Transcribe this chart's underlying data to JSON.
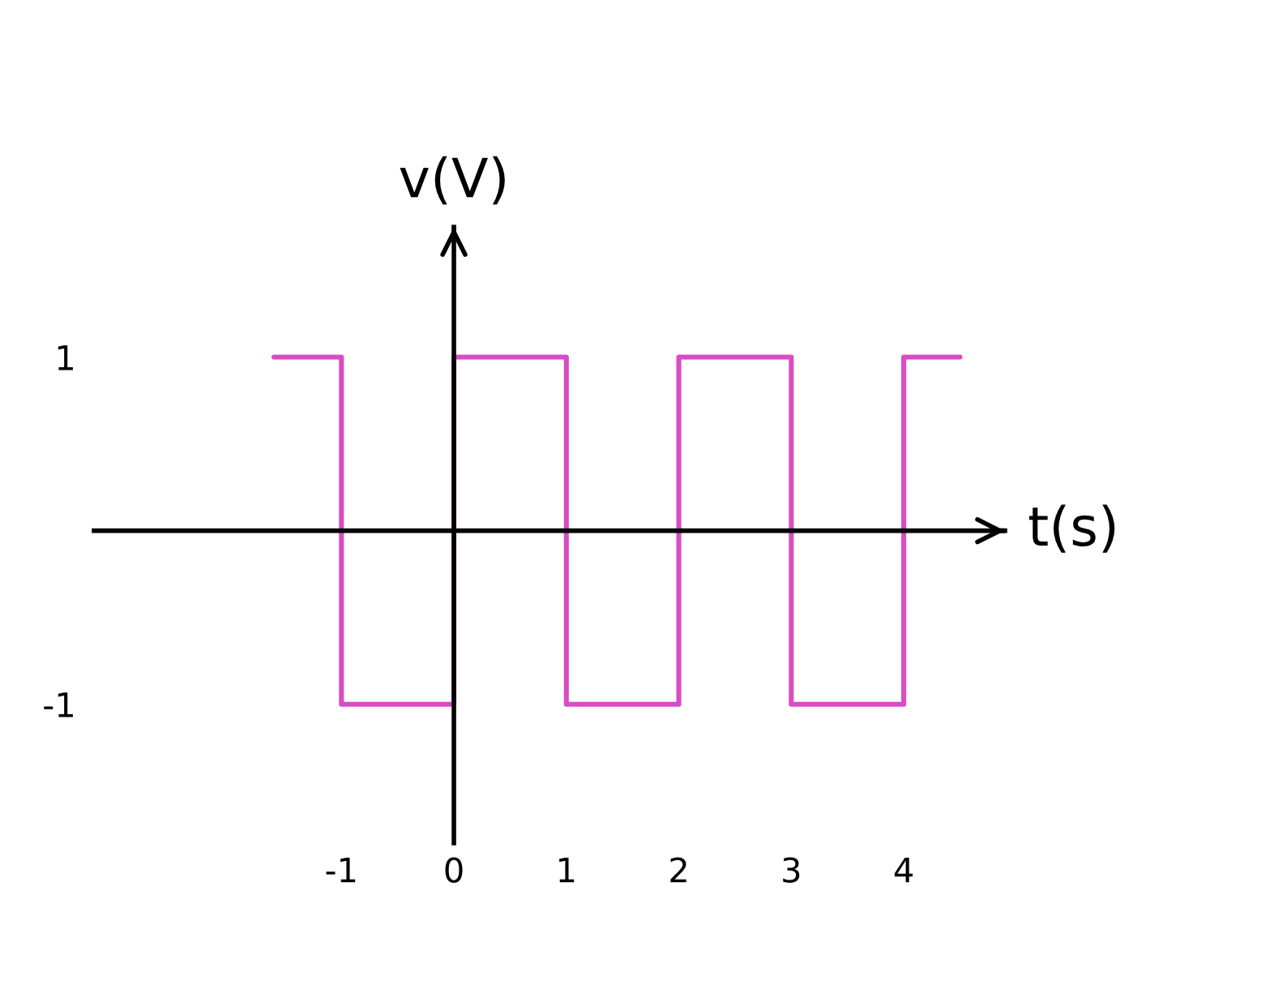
{
  "chart_data": {
    "type": "step",
    "xlabel": "t(s)",
    "ylabel": "v(V)",
    "x": [
      -1.6,
      -1,
      0,
      1,
      2,
      3,
      4,
      4.5
    ],
    "values": [
      1,
      -1,
      1,
      -1,
      1,
      -1,
      1,
      1
    ],
    "color": "#d94cc4",
    "xlim": [
      -3.2,
      4.9
    ],
    "ylim": [
      -1.8,
      1.75
    ],
    "xticks": [
      -1,
      0,
      1,
      2,
      3,
      4
    ],
    "yticks": [
      -1,
      1
    ]
  }
}
